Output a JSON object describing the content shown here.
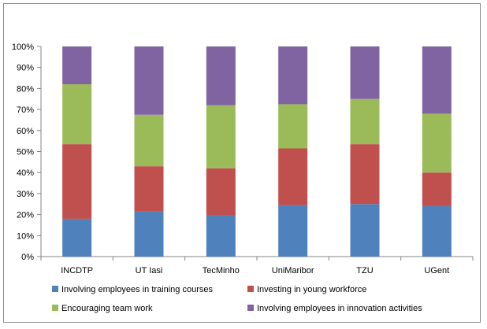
{
  "chart_data": {
    "type": "bar",
    "stacked": true,
    "percent_stacked": true,
    "categories": [
      "INCDTP",
      "UT Iasi",
      "TecMinho",
      "UniMaribor",
      "TZU",
      "UGent"
    ],
    "series": [
      {
        "name": "Involving employees in training courses",
        "color": "#4f81bd",
        "values": [
          18,
          21.5,
          19.5,
          24.5,
          25,
          24
        ]
      },
      {
        "name": "Investing in young workforce",
        "color": "#c0504d",
        "values": [
          35.5,
          21.5,
          22.5,
          27,
          28.5,
          16
        ]
      },
      {
        "name": "Encouraging team work",
        "color": "#9bbb59",
        "values": [
          28.5,
          24.5,
          30,
          21,
          21.5,
          28
        ]
      },
      {
        "name": "Involving employees in innovation activities",
        "color": "#8064a2",
        "values": [
          18,
          32.5,
          28,
          27.5,
          25,
          32
        ]
      }
    ],
    "y_ticks": [
      "0%",
      "10%",
      "20%",
      "30%",
      "40%",
      "50%",
      "60%",
      "70%",
      "80%",
      "90%",
      "100%"
    ],
    "ylim": [
      0,
      100
    ],
    "title": "",
    "xlabel": "",
    "ylabel": "",
    "grid": false,
    "legend_position": "bottom"
  }
}
